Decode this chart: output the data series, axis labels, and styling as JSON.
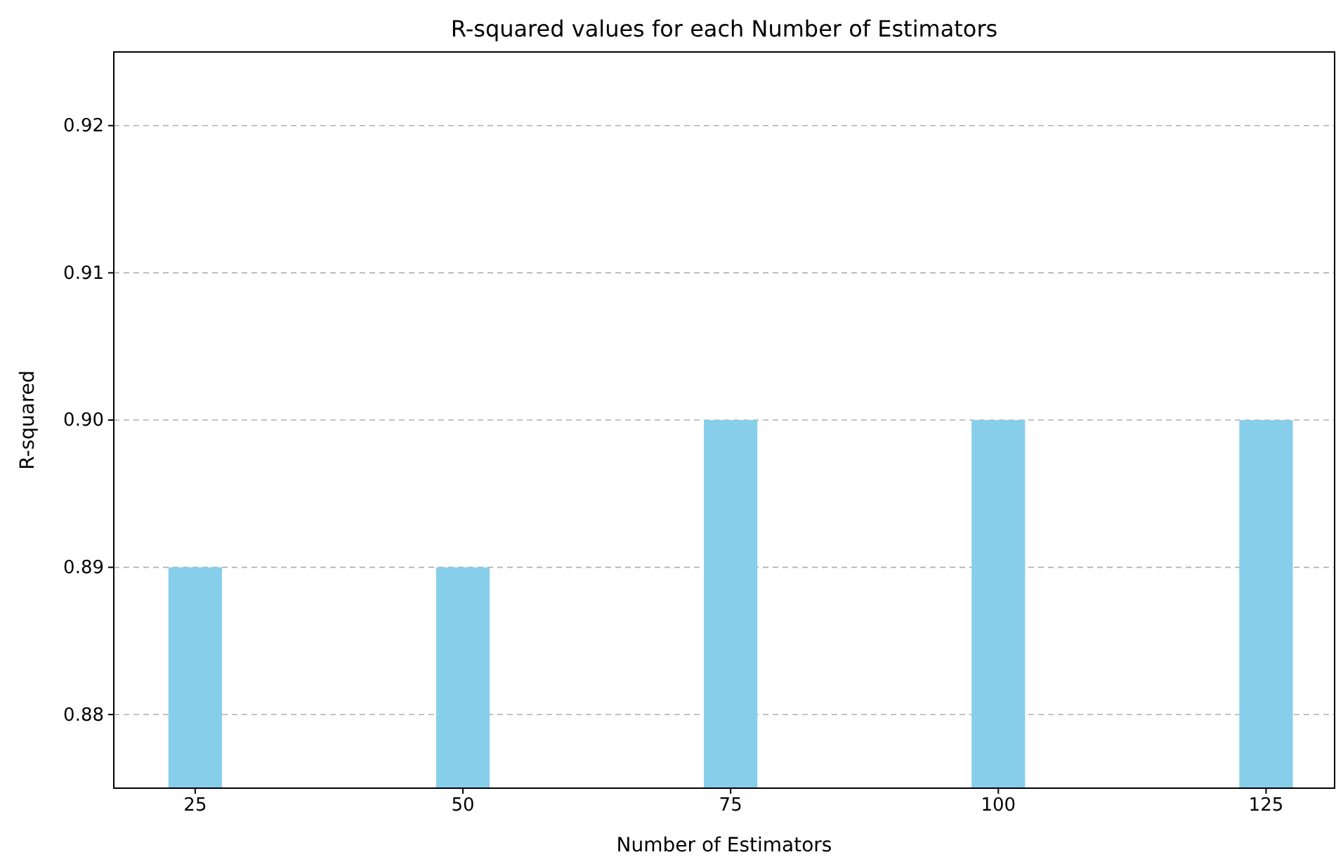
{
  "chart_data": {
    "type": "bar",
    "title": "R-squared values for each Number of Estimators",
    "xlabel": "Number of Estimators",
    "ylabel": "R-squared",
    "x": [
      25,
      50,
      75,
      100,
      125
    ],
    "values": [
      0.89,
      0.89,
      0.9,
      0.9,
      0.9
    ],
    "color": "#87ceeb",
    "xlim": [
      17.4,
      131.4
    ],
    "xticks": [
      25,
      50,
      75,
      100,
      125
    ],
    "ylim": [
      0.875,
      0.925
    ],
    "yticks": [
      {
        "value": 0.88,
        "label": "0.88"
      },
      {
        "value": 0.89,
        "label": "0.89"
      },
      {
        "value": 0.9,
        "label": "0.90"
      },
      {
        "value": 0.91,
        "label": "0.91"
      },
      {
        "value": 0.92,
        "label": "0.92"
      }
    ],
    "grid": "y",
    "line_style": "dashed"
  }
}
